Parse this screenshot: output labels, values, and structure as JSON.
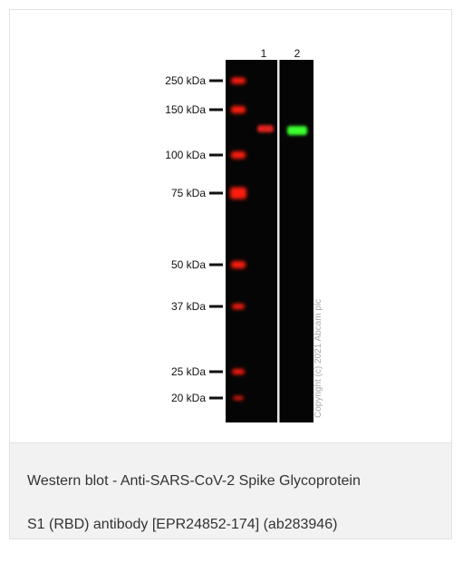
{
  "figure": {
    "lane_labels": [
      "1",
      "2"
    ],
    "markers": [
      "250 kDa",
      "150 kDa",
      "100 kDa",
      "75 kDa",
      "50 kDa",
      "37 kDa",
      "25 kDa",
      "20 kDa"
    ],
    "copyright": "Copyright (c) 2021 Abcam plc"
  },
  "caption": {
    "lines": [
      "Western blot - Anti-SARS-CoV-2 Spike Glycoprotein",
      "S1 (RBD) antibody [EPR24852-174] (ab283946)"
    ]
  }
}
